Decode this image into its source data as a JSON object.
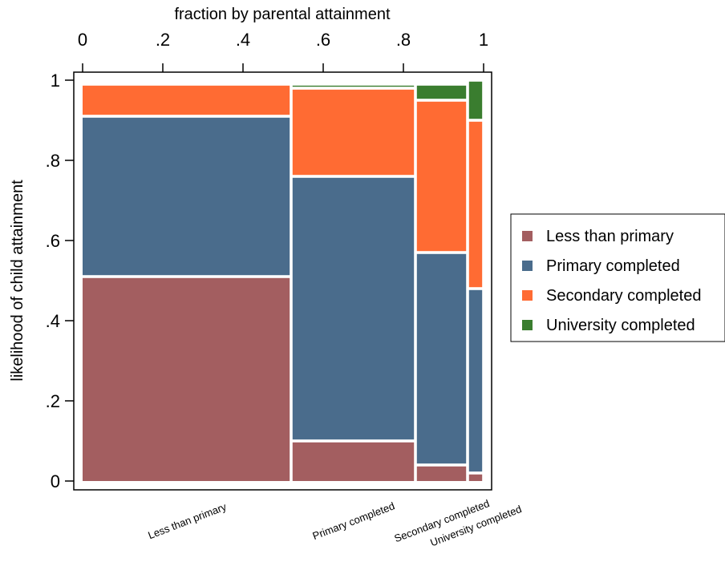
{
  "chart_data": {
    "type": "mosaic",
    "title": "",
    "xlabel": "fraction by parental attainment",
    "ylabel": "likelihood of child attainment",
    "xlim": [
      0,
      1
    ],
    "ylim": [
      0,
      1
    ],
    "x_ticks": [
      "0",
      ".2",
      ".4",
      ".6",
      ".8",
      "1"
    ],
    "y_ticks": [
      "0",
      ".2",
      ".4",
      ".6",
      ".8",
      "1"
    ],
    "legend_position": "right",
    "series": [
      {
        "name": "Less than primary",
        "color": "#a35e60"
      },
      {
        "name": "Primary completed",
        "color": "#4a6c8c"
      },
      {
        "name": "Secondary completed",
        "color": "#ff6b33"
      },
      {
        "name": "University completed",
        "color": "#3a7d2f"
      }
    ],
    "categories": [
      {
        "label": "Less than primary",
        "width": 0.52,
        "shares": [
          0.51,
          0.4,
          0.08,
          0.0
        ]
      },
      {
        "label": "Primary completed",
        "width": 0.31,
        "shares": [
          0.1,
          0.66,
          0.22,
          0.01
        ]
      },
      {
        "label": "Secondary completed",
        "width": 0.13,
        "shares": [
          0.04,
          0.53,
          0.38,
          0.04
        ]
      },
      {
        "label": "University completed",
        "width": 0.04,
        "shares": [
          0.02,
          0.46,
          0.42,
          0.1
        ]
      }
    ]
  }
}
